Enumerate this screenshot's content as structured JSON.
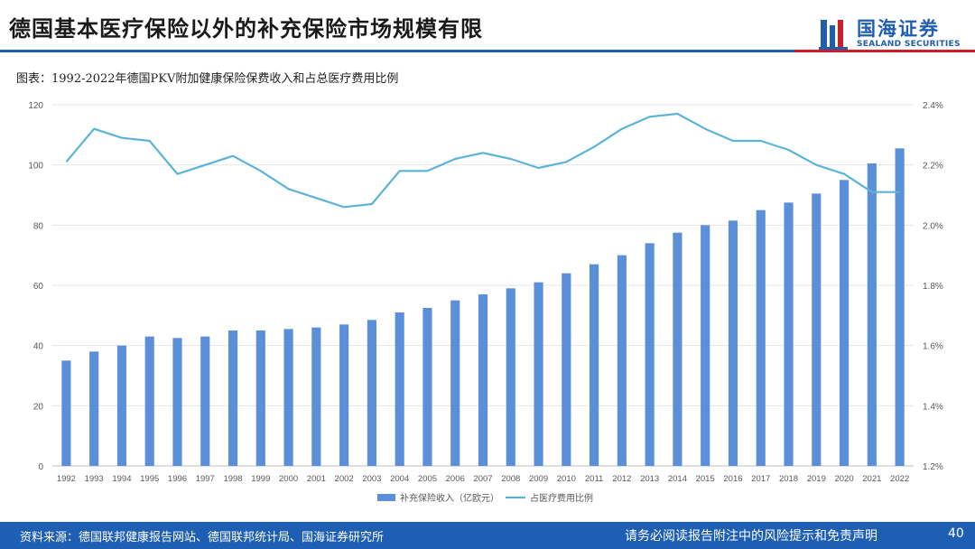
{
  "header": {
    "title": "德国基本医疗保险以外的补充保险市场规模有限",
    "logo_name": "国海证券",
    "logo_sub": "SEALAND SECURITIES"
  },
  "figure_caption": "图表：1992-2022年德国PKV附加健康保险保费收入和占总医疗费用比例",
  "footer": {
    "source": "资料来源：德国联邦健康报告网站、德国联邦统计局、国海证券研究所",
    "disclaimer": "请务必阅读报告附注中的风险提示和免责声明",
    "page": "40"
  },
  "colors": {
    "bar": "#5b8fd9",
    "line": "#5bb4d8",
    "brand": "#1f5fae",
    "accent_red": "#c8202a"
  },
  "chart_data": {
    "type": "bar",
    "title": "",
    "categories": [
      "1992",
      "1993",
      "1994",
      "1995",
      "1996",
      "1997",
      "1998",
      "1999",
      "2000",
      "2001",
      "2002",
      "2003",
      "2004",
      "2005",
      "2006",
      "2007",
      "2008",
      "2009",
      "2010",
      "2011",
      "2012",
      "2013",
      "2014",
      "2015",
      "2016",
      "2017",
      "2018",
      "2019",
      "2020",
      "2021",
      "2022"
    ],
    "series": [
      {
        "name": "补充保险收入（亿欧元）",
        "type": "bar",
        "axis": "left",
        "values": [
          35,
          38,
          40,
          43,
          42.5,
          43,
          45,
          45,
          45.5,
          46,
          47,
          48.5,
          51,
          52.5,
          55,
          57,
          59,
          61,
          64,
          67,
          70,
          74,
          77.5,
          80,
          81.5,
          85,
          87.5,
          90.5,
          95,
          100.5,
          105.5
        ]
      },
      {
        "name": "占医疗费用比例",
        "type": "line",
        "axis": "right",
        "values": [
          2.21,
          2.32,
          2.29,
          2.28,
          2.17,
          2.2,
          2.23,
          2.18,
          2.12,
          2.09,
          2.06,
          2.07,
          2.18,
          2.18,
          2.22,
          2.24,
          2.22,
          2.19,
          2.21,
          2.26,
          2.32,
          2.36,
          2.37,
          2.32,
          2.28,
          2.28,
          2.25,
          2.2,
          2.17,
          2.11,
          2.11
        ]
      }
    ],
    "y_left": {
      "min": 0,
      "max": 120,
      "ticks": [
        "0",
        "20",
        "40",
        "60",
        "80",
        "100",
        "120"
      ]
    },
    "y_right": {
      "min": 1.2,
      "max": 2.4,
      "ticks": [
        "1.2%",
        "1.4%",
        "1.6%",
        "1.8%",
        "2.0%",
        "2.2%",
        "2.4%"
      ]
    },
    "xlabel": "",
    "ylabel": "",
    "grid": true,
    "legend_position": "bottom"
  }
}
